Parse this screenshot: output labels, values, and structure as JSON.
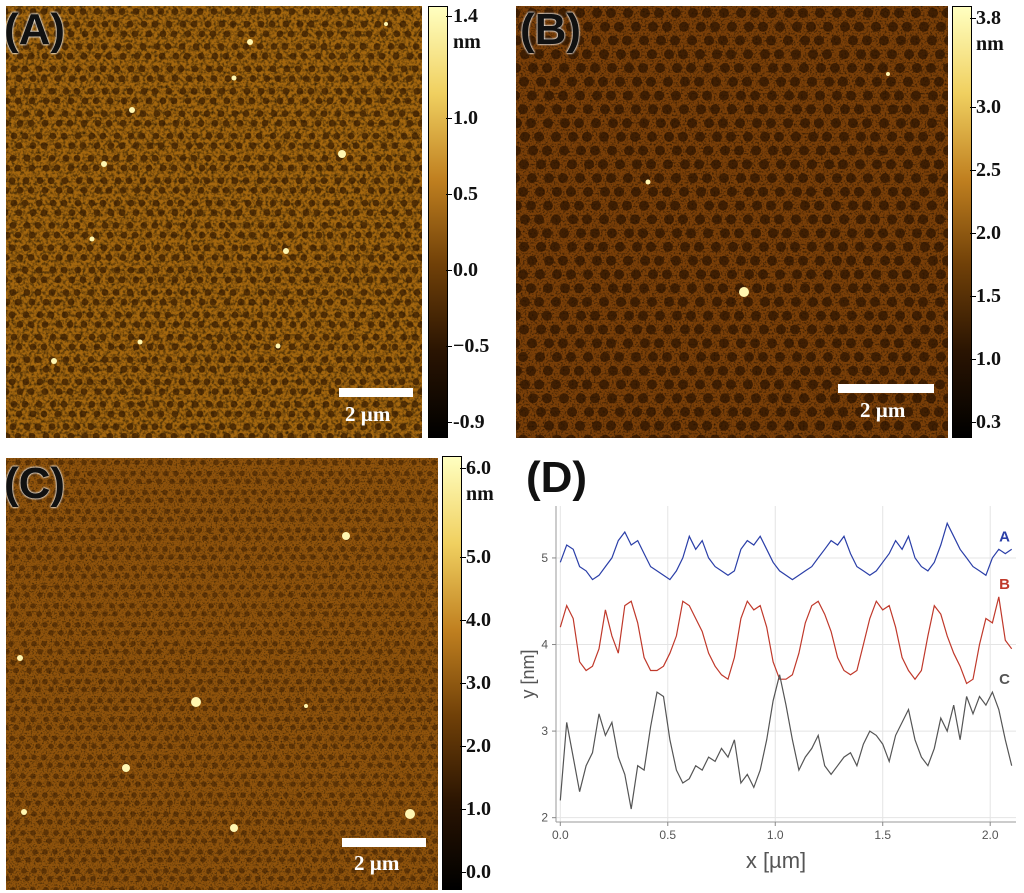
{
  "panels": {
    "A": {
      "label": "(A)",
      "scale_bar": "2 µm",
      "colorbar_ticks": [
        "1.4",
        "nm",
        "1.0",
        "0.5",
        "0.0",
        "−0.5",
        "-0.9"
      ],
      "colorbar_colors": [
        "#ffffc0",
        "#f0d060",
        "#c08020",
        "#704008",
        "#2a1402",
        "#000000"
      ]
    },
    "B": {
      "label": "(B)",
      "scale_bar": "2 µm",
      "colorbar_ticks": [
        "3.8",
        "nm",
        "3.0",
        "2.5",
        "2.0",
        "1.5",
        "1.0",
        "0.3"
      ],
      "colorbar_colors": [
        "#ffffc0",
        "#f0d060",
        "#c08020",
        "#704008",
        "#2a1402",
        "#000000"
      ]
    },
    "C": {
      "label": "(C)",
      "scale_bar": "2 µm",
      "colorbar_ticks": [
        "6.0",
        "nm",
        "5.0",
        "4.0",
        "3.0",
        "2.0",
        "1.0",
        "0.0"
      ],
      "colorbar_colors": [
        "#ffffc0",
        "#f0d060",
        "#c08020",
        "#704008",
        "#2a1402",
        "#000000"
      ]
    },
    "D": {
      "label": "(D)"
    }
  },
  "chart_data": {
    "type": "line",
    "xlabel": "x [µm]",
    "ylabel": "y [nm]",
    "xlim": [
      -0.02,
      2.12
    ],
    "ylim": [
      1.95,
      5.6
    ],
    "xticks": [
      "0.0",
      "0.5",
      "1.0",
      "1.5",
      "2.0"
    ],
    "xtick_values": [
      0.0,
      0.5,
      1.0,
      1.5,
      2.0
    ],
    "yticks": [
      "2",
      "3",
      "4",
      "5"
    ],
    "ytick_values": [
      2,
      3,
      4,
      5
    ],
    "grid": true,
    "series": [
      {
        "name": "A",
        "color": "#2b3fa8",
        "x": [
          0.0,
          0.03,
          0.06,
          0.09,
          0.12,
          0.15,
          0.18,
          0.21,
          0.24,
          0.27,
          0.3,
          0.33,
          0.36,
          0.39,
          0.42,
          0.45,
          0.48,
          0.51,
          0.54,
          0.57,
          0.6,
          0.63,
          0.66,
          0.69,
          0.72,
          0.75,
          0.78,
          0.81,
          0.84,
          0.87,
          0.9,
          0.93,
          0.96,
          0.99,
          1.02,
          1.05,
          1.08,
          1.11,
          1.14,
          1.17,
          1.2,
          1.23,
          1.26,
          1.29,
          1.32,
          1.35,
          1.38,
          1.41,
          1.44,
          1.47,
          1.5,
          1.53,
          1.56,
          1.59,
          1.62,
          1.65,
          1.68,
          1.71,
          1.74,
          1.77,
          1.8,
          1.83,
          1.86,
          1.89,
          1.92,
          1.95,
          1.98,
          2.01,
          2.04,
          2.07,
          2.1
        ],
        "y": [
          4.95,
          5.15,
          5.1,
          4.9,
          4.85,
          4.75,
          4.8,
          4.9,
          5.0,
          5.2,
          5.3,
          5.15,
          5.2,
          5.05,
          4.9,
          4.85,
          4.8,
          4.75,
          4.85,
          5.0,
          5.25,
          5.1,
          5.2,
          5.0,
          4.9,
          4.85,
          4.8,
          4.85,
          5.1,
          5.2,
          5.15,
          5.25,
          5.1,
          4.95,
          4.85,
          4.8,
          4.75,
          4.8,
          4.85,
          4.9,
          5.0,
          5.1,
          5.2,
          5.15,
          5.25,
          5.05,
          4.9,
          4.85,
          4.8,
          4.85,
          4.95,
          5.05,
          5.2,
          5.1,
          5.25,
          5.0,
          4.9,
          4.85,
          4.95,
          5.15,
          5.4,
          5.25,
          5.1,
          5.0,
          4.9,
          4.85,
          4.8,
          5.0,
          5.1,
          5.05,
          5.1
        ]
      },
      {
        "name": "B",
        "color": "#c0392b",
        "x": [
          0.0,
          0.03,
          0.06,
          0.09,
          0.12,
          0.15,
          0.18,
          0.21,
          0.24,
          0.27,
          0.3,
          0.33,
          0.36,
          0.39,
          0.42,
          0.45,
          0.48,
          0.51,
          0.54,
          0.57,
          0.6,
          0.63,
          0.66,
          0.69,
          0.72,
          0.75,
          0.78,
          0.81,
          0.84,
          0.87,
          0.9,
          0.93,
          0.96,
          0.99,
          1.02,
          1.05,
          1.08,
          1.11,
          1.14,
          1.17,
          1.2,
          1.23,
          1.26,
          1.29,
          1.32,
          1.35,
          1.38,
          1.41,
          1.44,
          1.47,
          1.5,
          1.53,
          1.56,
          1.59,
          1.62,
          1.65,
          1.68,
          1.71,
          1.74,
          1.77,
          1.8,
          1.83,
          1.86,
          1.89,
          1.92,
          1.95,
          1.98,
          2.01,
          2.04,
          2.07,
          2.1
        ],
        "y": [
          4.2,
          4.45,
          4.3,
          3.8,
          3.7,
          3.75,
          3.95,
          4.4,
          4.1,
          3.9,
          4.45,
          4.5,
          4.25,
          3.85,
          3.7,
          3.7,
          3.75,
          3.9,
          4.1,
          4.5,
          4.45,
          4.3,
          4.15,
          3.9,
          3.75,
          3.65,
          3.6,
          3.85,
          4.3,
          4.5,
          4.4,
          4.45,
          4.2,
          3.8,
          3.6,
          3.6,
          3.65,
          3.9,
          4.25,
          4.45,
          4.5,
          4.35,
          4.15,
          3.85,
          3.7,
          3.65,
          3.7,
          4.0,
          4.3,
          4.5,
          4.4,
          4.45,
          4.2,
          3.85,
          3.7,
          3.6,
          3.7,
          4.1,
          4.45,
          4.35,
          4.1,
          3.9,
          3.75,
          3.55,
          3.6,
          4.0,
          4.3,
          4.25,
          4.55,
          4.05,
          3.95
        ]
      },
      {
        "name": "C",
        "color": "#555555",
        "x": [
          0.0,
          0.03,
          0.06,
          0.09,
          0.12,
          0.15,
          0.18,
          0.21,
          0.24,
          0.27,
          0.3,
          0.33,
          0.36,
          0.39,
          0.42,
          0.45,
          0.48,
          0.51,
          0.54,
          0.57,
          0.6,
          0.63,
          0.66,
          0.69,
          0.72,
          0.75,
          0.78,
          0.81,
          0.84,
          0.87,
          0.9,
          0.93,
          0.96,
          0.99,
          1.02,
          1.05,
          1.08,
          1.11,
          1.14,
          1.17,
          1.2,
          1.23,
          1.26,
          1.29,
          1.32,
          1.35,
          1.38,
          1.41,
          1.44,
          1.47,
          1.5,
          1.53,
          1.56,
          1.59,
          1.62,
          1.65,
          1.68,
          1.71,
          1.74,
          1.77,
          1.8,
          1.83,
          1.86,
          1.89,
          1.92,
          1.95,
          1.98,
          2.01,
          2.04,
          2.07,
          2.1
        ],
        "y": [
          2.2,
          3.1,
          2.7,
          2.3,
          2.6,
          2.75,
          3.2,
          2.95,
          3.1,
          2.7,
          2.5,
          2.1,
          2.6,
          2.55,
          3.05,
          3.45,
          3.4,
          2.9,
          2.55,
          2.4,
          2.45,
          2.6,
          2.55,
          2.7,
          2.65,
          2.8,
          2.7,
          2.9,
          2.4,
          2.5,
          2.35,
          2.55,
          2.9,
          3.35,
          3.65,
          3.3,
          2.9,
          2.55,
          2.7,
          2.8,
          2.95,
          2.6,
          2.5,
          2.6,
          2.7,
          2.75,
          2.6,
          2.85,
          3.0,
          2.95,
          2.85,
          2.65,
          2.95,
          3.1,
          3.25,
          2.9,
          2.7,
          2.6,
          2.8,
          3.15,
          3.0,
          3.3,
          2.9,
          3.4,
          3.2,
          3.4,
          3.3,
          3.45,
          3.25,
          2.9,
          2.6
        ]
      }
    ]
  }
}
